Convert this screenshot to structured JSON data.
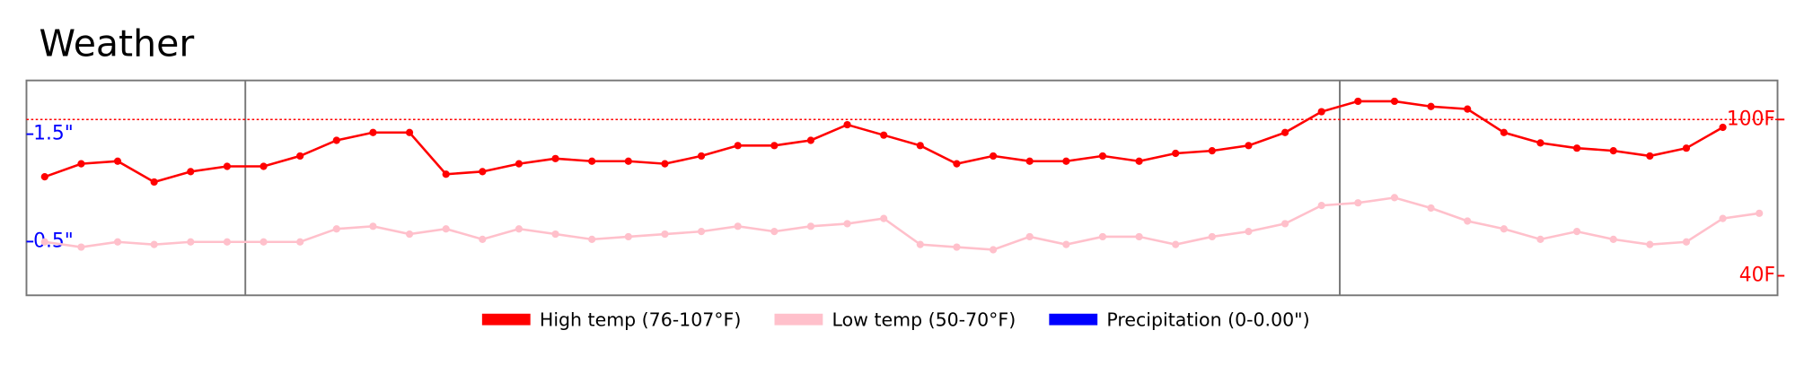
{
  "chart_data": {
    "type": "line",
    "title": "Weather",
    "xlim": [
      -0.5,
      47.5
    ],
    "vlines": [
      5.5,
      35.5
    ],
    "ylim": [
      32.5,
      115
    ],
    "yticks": [
      {
        "value": 40,
        "label": "40F"
      },
      {
        "value": 100,
        "label": "100F"
      }
    ],
    "reference_line": 100,
    "y2lim": [
      0,
      2
    ],
    "y2ticks": [
      {
        "value": 0.5,
        "label": "0.5\""
      },
      {
        "value": 1.5,
        "label": "1.5\""
      }
    ],
    "series": [
      {
        "name": "High temp (76-107°F)",
        "color": "#ff0000",
        "values": [
          78,
          83,
          84,
          76,
          80,
          82,
          82,
          86,
          92,
          95,
          95,
          79,
          80,
          83,
          85,
          84,
          84,
          83,
          86,
          90,
          90,
          92,
          98,
          94,
          90,
          83,
          86,
          84,
          84,
          86,
          84,
          87,
          88,
          90,
          95,
          103,
          107,
          107,
          105,
          104,
          95,
          91,
          89,
          88,
          86,
          89,
          97,
          null
        ]
      },
      {
        "name": "Low temp (50-70°F)",
        "color": "#ffc0cb",
        "values": [
          53,
          51,
          53,
          52,
          53,
          53,
          53,
          53,
          58,
          59,
          56,
          58,
          54,
          58,
          56,
          54,
          55,
          56,
          57,
          59,
          57,
          59,
          60,
          62,
          52,
          51,
          50,
          55,
          52,
          55,
          55,
          52,
          55,
          57,
          60,
          67,
          68,
          70,
          66,
          61,
          58,
          54,
          57,
          54,
          52,
          53,
          62,
          64
        ]
      },
      {
        "name": "Precipitation (0-0.00\")",
        "color": "#0000ff",
        "axis": "y2",
        "values": [
          0,
          0,
          0,
          0,
          0,
          0,
          0,
          0,
          0,
          0,
          0,
          0,
          0,
          0,
          0,
          0,
          0,
          0,
          0,
          0,
          0,
          0,
          0,
          0,
          0,
          0,
          0,
          0,
          0,
          0,
          0,
          0,
          0,
          0,
          0,
          0,
          0,
          0,
          0,
          0,
          0,
          0,
          0,
          0,
          0,
          0,
          0,
          0
        ]
      }
    ]
  }
}
